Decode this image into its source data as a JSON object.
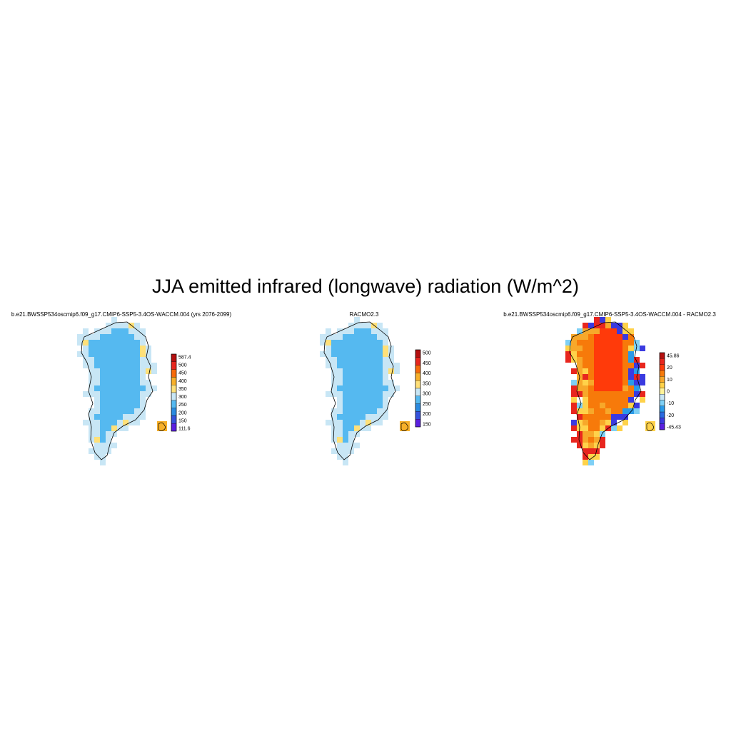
{
  "figure": {
    "title": "JJA emitted infrared (longwave) radiation (W/m^2)"
  },
  "chart_data": [
    {
      "type": "heatmap",
      "title": "b.e21.BWSSP534oscmip6.f09_g17.CMIP6-SSP5-3.4OS-WACCM.004 (yrs 2076-2099)",
      "field": "model",
      "colorbar": {
        "levels": [
          "587.4",
          "500",
          "450",
          "400",
          "350",
          "300",
          "250",
          "200",
          "150",
          "111.6"
        ],
        "colors": [
          "#b40f0f",
          "#e8261e",
          "#f76a0a",
          "#f7b02a",
          "#ffe079",
          "#c8e6f5",
          "#55b9f0",
          "#2a8ae0",
          "#3552dc",
          "#5a1fe0"
        ]
      }
    },
    {
      "type": "heatmap",
      "title": "RACMO2.3",
      "field": "racmo",
      "colorbar": {
        "levels": [
          "500",
          "450",
          "400",
          "350",
          "300",
          "250",
          "200",
          "150"
        ],
        "colors": [
          "#b40f0f",
          "#e8261e",
          "#f76a0a",
          "#f7b02a",
          "#ffe079",
          "#c8e6f5",
          "#55b9f0",
          "#2a8ae0",
          "#3552dc",
          "#5a1fe0"
        ]
      }
    },
    {
      "type": "heatmap",
      "title": "b.e21.BWSSP534oscmip6.f09_g17.CMIP6-SSP5-3.4OS-WACCM.004 - RACMO2.3",
      "field": "diff",
      "colorbar": {
        "levels": [
          "45.86",
          "20",
          "10",
          "0",
          "-10",
          "-20",
          "-45.43"
        ],
        "colors": [
          "#b40f0f",
          "#e8261e",
          "#ff3a0a",
          "#f77a0a",
          "#f7a82a",
          "#ffd24a",
          "#fff39a",
          "#c8e6f5",
          "#7fd0f5",
          "#2a9ae8",
          "#2a6ae0",
          "#3a3ae0",
          "#5a1fe0"
        ]
      }
    }
  ]
}
